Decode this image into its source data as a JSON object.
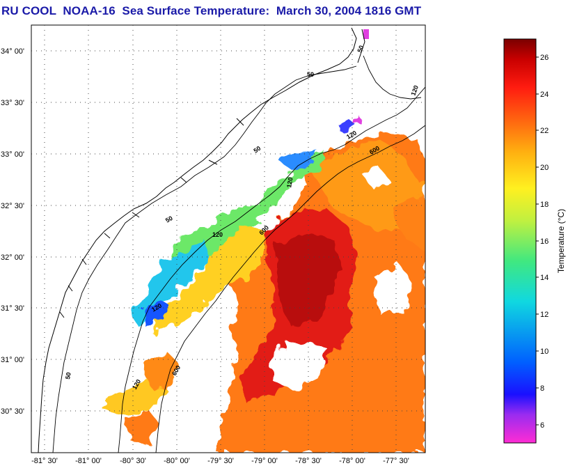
{
  "title": "RU COOL  NOAA-16  Sea Surface Temperature:  March 30, 2004 1816 GMT",
  "map": {
    "lat_labels": [
      "34° 00'",
      "33° 30'",
      "33° 00'",
      "32° 30'",
      "32° 00'",
      "31° 30'",
      "31° 00'",
      "30° 30'"
    ],
    "lon_labels": [
      "-81° 30'",
      "-81° 00'",
      "-80° 30'",
      "-80° 00'",
      "-79° 30'",
      "-79° 00'",
      "-78° 30'",
      "-78° 00'",
      "-77° 30'"
    ],
    "isobath_labels": [
      "50",
      "50",
      "50",
      "50",
      "50",
      "120",
      "120",
      "120",
      "120",
      "120",
      "600",
      "600",
      "600",
      "120"
    ]
  },
  "colorbar": {
    "label": "Temperature (°C)",
    "ticks": [
      "26",
      "24",
      "22",
      "20",
      "18",
      "16",
      "14",
      "12",
      "10",
      "8",
      "6"
    ],
    "colors": [
      "#ff2cd4",
      "#9a2cf0",
      "#1a10ff",
      "#0060ff",
      "#10d8e0",
      "#40e880",
      "#c0f040",
      "#fff020",
      "#ffb010",
      "#ff6410",
      "#ff1c10",
      "#c80000",
      "#7a0000"
    ]
  }
}
